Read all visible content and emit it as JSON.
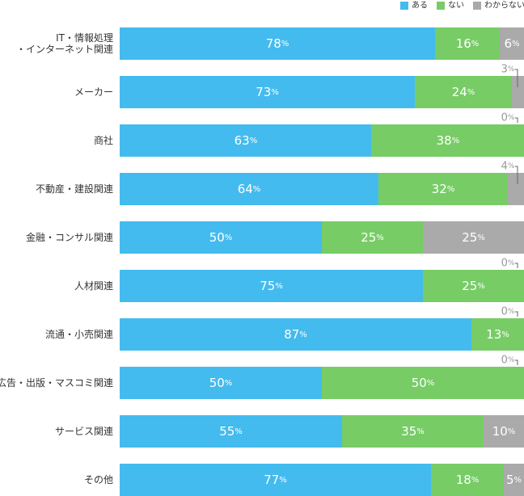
{
  "chart_data": {
    "type": "bar",
    "orientation": "horizontal",
    "stacked": true,
    "percent_scale": true,
    "legend_position": "top-right",
    "grid": false,
    "xlim": [
      0,
      100
    ],
    "categories": [
      "IT・情報処理\n・インターネット関連",
      "メーカー",
      "商社",
      "不動産・建設関連",
      "金融・コンサル関連",
      "人材関連",
      "流通・小売関連",
      "広告・出版・マスコミ関連",
      "サービス関連",
      "その他"
    ],
    "series": [
      {
        "name": "ある",
        "color": "#44bbee",
        "values": [
          78,
          73,
          63,
          64,
          50,
          75,
          87,
          50,
          55,
          77
        ]
      },
      {
        "name": "ない",
        "color": "#77cc66",
        "values": [
          16,
          24,
          38,
          32,
          25,
          25,
          13,
          50,
          35,
          18
        ]
      },
      {
        "name": "わからない",
        "color": "#aaaaaa",
        "values": [
          6,
          3,
          0,
          4,
          25,
          0,
          0,
          0,
          10,
          5
        ]
      }
    ],
    "value_suffix": "%",
    "label_color_inside": "#ffffff",
    "label_color_outside": "#999999"
  }
}
